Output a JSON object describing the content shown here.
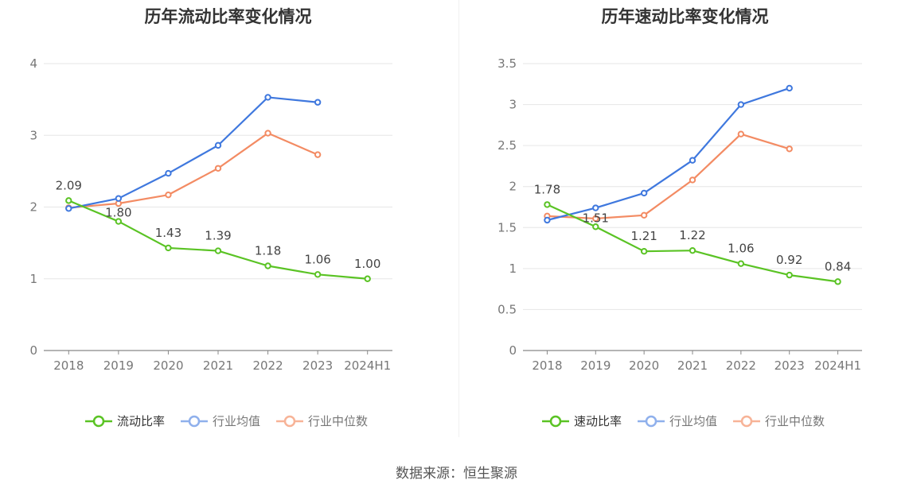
{
  "source_text": "数据来源：恒生聚源",
  "chart_data": [
    {
      "type": "line",
      "title": "历年流动比率变化情况",
      "categories": [
        "2018",
        "2019",
        "2020",
        "2021",
        "2022",
        "2023",
        "2024H1"
      ],
      "ylim": [
        0,
        4
      ],
      "yticks": [
        "0",
        "1",
        "2",
        "3",
        "4"
      ],
      "grid": true,
      "legend_position": "bottom-center",
      "series": [
        {
          "name": "流动比率",
          "color": "#5ac324",
          "values": [
            2.09,
            1.8,
            1.43,
            1.39,
            1.18,
            1.06,
            1.0
          ],
          "labels": [
            "2.09",
            "1.80",
            "1.43",
            "1.39",
            "1.18",
            "1.06",
            "1.00"
          ]
        },
        {
          "name": "行业均值",
          "color": "#3f78de",
          "values": [
            1.98,
            2.12,
            2.47,
            2.86,
            3.53,
            3.46,
            null
          ]
        },
        {
          "name": "行业中位数",
          "color": "#f38b63",
          "values": [
            1.99,
            2.05,
            2.17,
            2.54,
            3.03,
            2.73,
            null
          ]
        }
      ]
    },
    {
      "type": "line",
      "title": "历年速动比率变化情况",
      "categories": [
        "2018",
        "2019",
        "2020",
        "2021",
        "2022",
        "2023",
        "2024H1"
      ],
      "ylim": [
        0,
        3.5
      ],
      "yticks": [
        "0",
        "0.5",
        "1",
        "1.5",
        "2",
        "2.5",
        "3",
        "3.5"
      ],
      "grid": true,
      "legend_position": "bottom-center",
      "series": [
        {
          "name": "速动比率",
          "color": "#5ac324",
          "values": [
            1.78,
            1.51,
            1.21,
            1.22,
            1.06,
            0.92,
            0.84
          ],
          "labels": [
            "1.78",
            "1.51",
            "1.21",
            "1.22",
            "1.06",
            "0.92",
            "0.84"
          ]
        },
        {
          "name": "行业均值",
          "color": "#3f78de",
          "values": [
            1.59,
            1.74,
            1.92,
            2.32,
            3.0,
            3.2,
            null
          ]
        },
        {
          "name": "行业中位数",
          "color": "#f38b63",
          "values": [
            1.64,
            1.61,
            1.65,
            2.08,
            2.64,
            2.46,
            null
          ]
        }
      ]
    }
  ]
}
